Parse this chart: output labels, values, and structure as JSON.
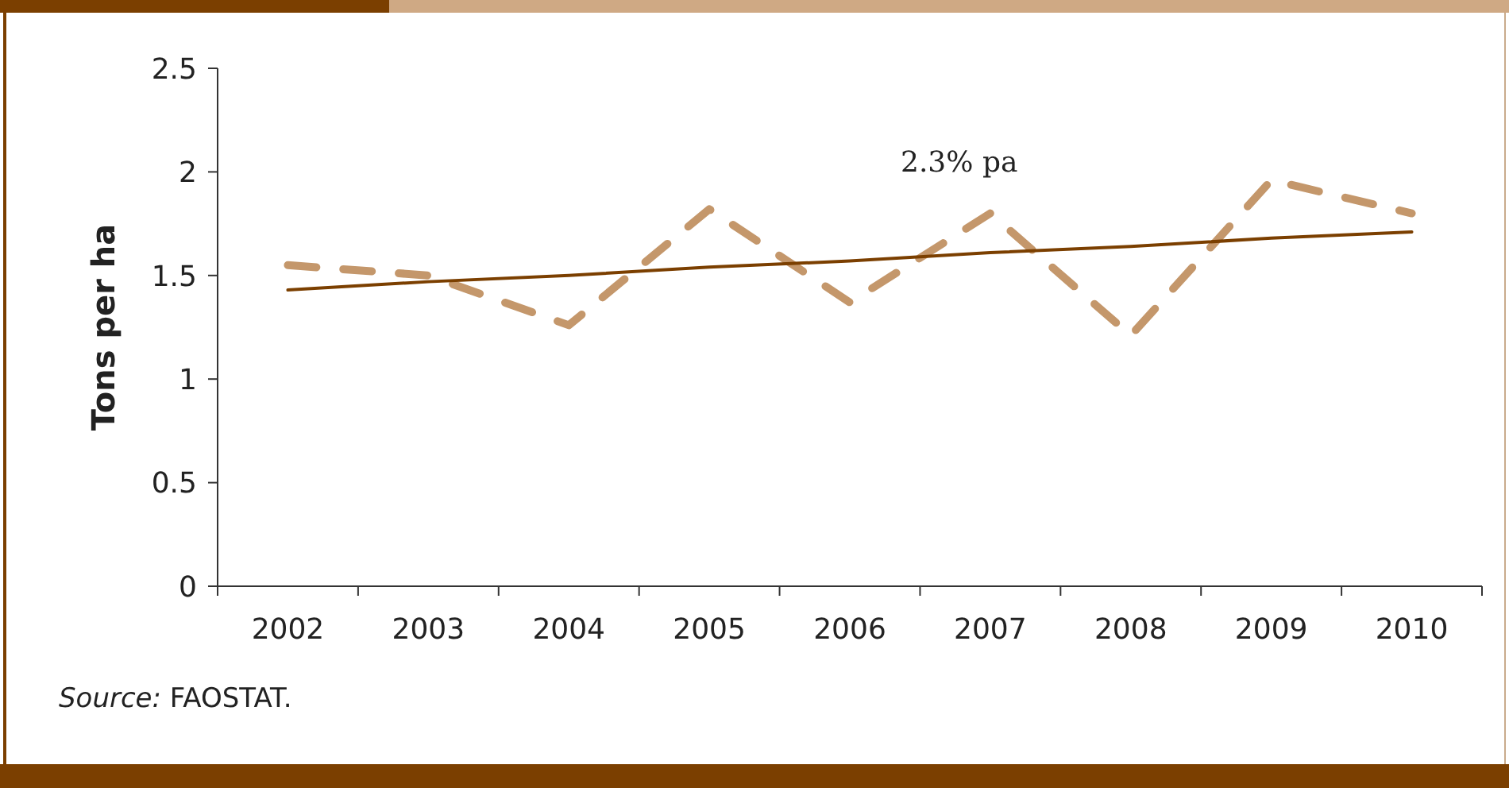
{
  "chart_data": {
    "type": "line",
    "ylabel": "Tons per ha",
    "categories": [
      "2002",
      "2003",
      "2004",
      "2005",
      "2006",
      "2007",
      "2008",
      "2009",
      "2010"
    ],
    "series": [
      {
        "color": "#c4976b",
        "line_style": "dashed",
        "values": [
          1.55,
          1.5,
          1.26,
          1.82,
          1.37,
          1.8,
          1.21,
          1.96,
          1.8
        ]
      },
      {
        "type": "line",
        "color": "#7b3f00",
        "line_style": "solid",
        "values": [
          1.43,
          1.47,
          1.5,
          1.54,
          1.57,
          1.61,
          1.64,
          1.68,
          1.71
        ]
      }
    ],
    "ylim": [
      0,
      2.5
    ],
    "yticks": [
      0,
      0.5,
      1,
      1.5,
      2,
      2.5
    ],
    "annotations": [
      "2.3% pa",
      "Source: FAOSTAT."
    ]
  }
}
